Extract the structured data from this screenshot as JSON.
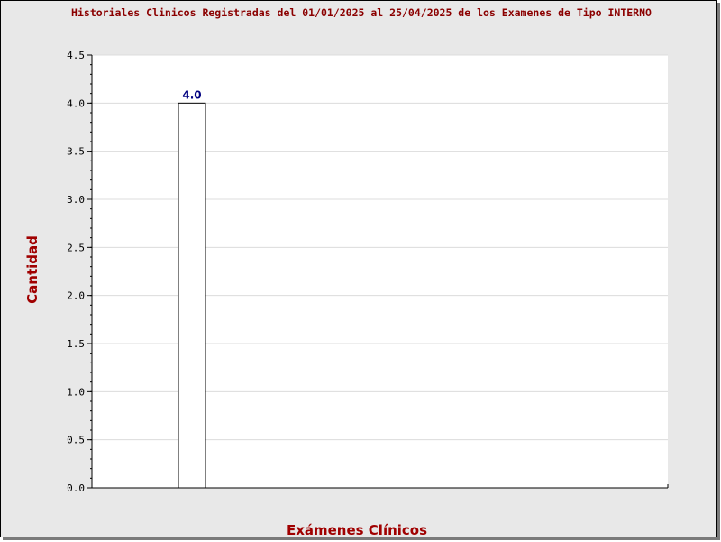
{
  "colors": {
    "title": "#8b0000",
    "axis_title": "#a00000",
    "data_label": "#000080",
    "bar_fill": "#ffffff",
    "bar_stroke": "#000000",
    "plot_bg": "#ffffff",
    "grid": "#dcdcdc",
    "frame_bg": "#e8e8e8"
  },
  "chart_data": {
    "type": "bar",
    "title": "Historiales Clinicos Registradas del 01/01/2025 al 25/04/2025 de los Examenes de Tipo INTERNO",
    "xlabel": "Exámenes Clínicos",
    "ylabel": "Cantidad",
    "categories": [
      ""
    ],
    "values": [
      4.0
    ],
    "data_labels": [
      "4.0"
    ],
    "ylim": [
      0,
      4.5
    ],
    "yticks": [
      0.0,
      0.5,
      1.0,
      1.5,
      2.0,
      2.5,
      3.0,
      3.5,
      4.0,
      4.5
    ],
    "ytick_labels": [
      "0.0",
      "0.5",
      "1.0",
      "1.5",
      "2.0",
      "2.5",
      "3.0",
      "3.5",
      "4.0",
      "4.5"
    ],
    "grid": true,
    "legend": "none"
  }
}
